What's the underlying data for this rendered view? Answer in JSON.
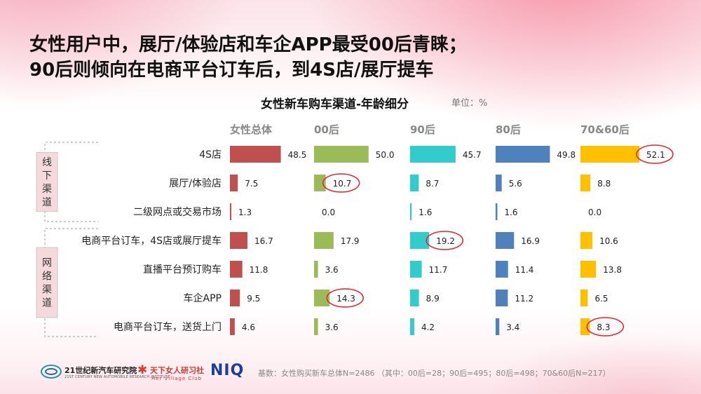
{
  "title_lines": [
    "女性用户中，展厅/体验店和车企APP最受00后青睐；",
    "90后则倾向在电商平台订车后，到4S店/展厅提车"
  ],
  "colors": {
    "女性总体": "#c0504d",
    "00后": "#9bbb59",
    "90后": "#33cccc",
    "80后": "#4f81bd",
    "70&60后": "#ffc000",
    "highlight_ring": "#e8232a",
    "group_box": "#f6d9dc"
  },
  "chart_data": {
    "type": "bar",
    "orientation": "horizontal",
    "title": "女性新车购车渠道-年龄细分",
    "unit_label": "单位：%",
    "groups": [
      {
        "label": "线下渠道",
        "categories": [
          "4S店",
          "展厅/体验店",
          "二级网点或交易市场"
        ]
      },
      {
        "label": "网络渠道",
        "categories": [
          "电商平台订车，4S店或展厅提车",
          "直播平台预订购车",
          "车企APP",
          "电商平台订车，送货上门"
        ]
      }
    ],
    "categories": [
      "4S店",
      "展厅/体验店",
      "二级网点或交易市场",
      "电商平台订车，4S店或展厅提车",
      "直播平台预订购车",
      "车企APP",
      "电商平台订车，送货上门"
    ],
    "series": [
      {
        "name": "女性总体",
        "values": [
          48.5,
          7.5,
          1.3,
          16.7,
          11.8,
          9.5,
          4.6
        ]
      },
      {
        "name": "00后",
        "values": [
          50.0,
          10.7,
          0.0,
          17.9,
          3.6,
          14.3,
          3.6
        ]
      },
      {
        "name": "90后",
        "values": [
          45.7,
          8.7,
          1.6,
          19.2,
          11.7,
          8.9,
          4.2
        ]
      },
      {
        "name": "80后",
        "values": [
          49.8,
          5.6,
          1.6,
          16.9,
          11.4,
          11.2,
          3.4
        ]
      },
      {
        "name": "70&60后",
        "values": [
          52.1,
          8.8,
          0.0,
          10.6,
          13.8,
          6.5,
          8.3
        ]
      }
    ],
    "highlighted": [
      {
        "series": "00后",
        "category": "展厅/体验店"
      },
      {
        "series": "00后",
        "category": "车企APP"
      },
      {
        "series": "90后",
        "category": "电商平台订车，4S店或展厅提车"
      },
      {
        "series": "70&60后",
        "category": "4S店"
      },
      {
        "series": "70&60后",
        "category": "电商平台订车，送货上门"
      }
    ],
    "xlim": [
      0,
      52.1
    ],
    "grid": false,
    "legend": "none",
    "series_labels_position": "top"
  },
  "footnote": "基数：女性购买新车总体N=2486 （其中：00后=28；90后=495；80后=498；70&60后N=217）",
  "logos": {
    "logo1_name": "21世纪新汽车研究院",
    "logo1_sub": "21ST CENTURY NEW AUTOMOBILE RESEARCH INSTITUTE",
    "logo2_name": "天下女人研习社",
    "logo2_sub": "Her Village Club",
    "logo3_name": "NIQ"
  }
}
